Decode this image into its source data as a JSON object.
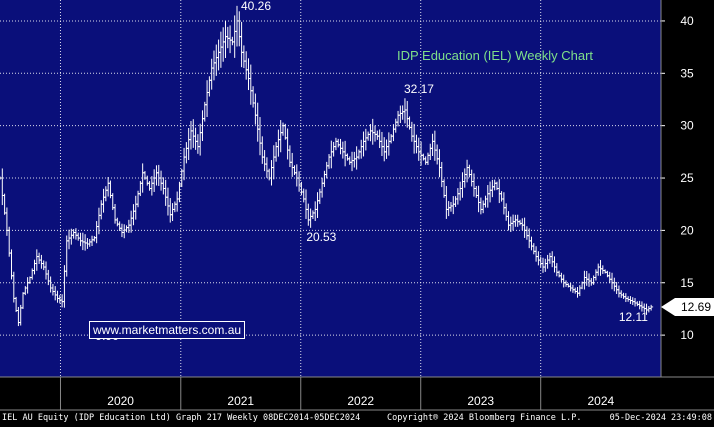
{
  "chart_data": {
    "type": "ohlc",
    "title": "IDP Education (IEL) Weekly Chart",
    "ylim": [
      6,
      42
    ],
    "yticks": [
      10,
      15,
      20,
      25,
      30,
      35,
      40
    ],
    "xlim": [
      "2019-07-01",
      "2025-01-01"
    ],
    "year_labels": [
      "2020",
      "2021",
      "2022",
      "2023",
      "2024"
    ],
    "last_price": "12.69",
    "annotations": [
      {
        "text": "40.26",
        "date": "2021-06-21",
        "value": 40.26
      },
      {
        "text": "32.17",
        "date": "2022-11-14",
        "value": 32.17
      },
      {
        "text": "20.53",
        "date": "2022-01-24",
        "value": 20.53
      },
      {
        "text": "9.90",
        "date": "2020-03-23",
        "value": 9.9
      },
      {
        "text": "12.11",
        "date": "2024-11-25",
        "value": 12.11
      }
    ],
    "series": [
      {
        "values": [
          [
            "2019-07-01",
            25.0
          ],
          [
            "2019-07-22",
            20.0
          ],
          [
            "2019-08-12",
            13.5
          ],
          [
            "2019-08-26",
            11.2
          ],
          [
            "2019-09-09",
            14.0
          ],
          [
            "2019-09-30",
            15.5
          ],
          [
            "2019-10-21",
            17.5
          ],
          [
            "2019-11-11",
            16.5
          ],
          [
            "2019-12-02",
            14.5
          ],
          [
            "2019-12-23",
            13.5
          ],
          [
            "2020-01-06",
            13.2
          ],
          [
            "2020-01-20",
            19.0
          ],
          [
            "2020-02-10",
            19.8
          ],
          [
            "2020-03-02",
            19.0
          ],
          [
            "2020-03-23",
            18.7
          ],
          [
            "2020-04-13",
            19.3
          ],
          [
            "2020-05-04",
            22.5
          ],
          [
            "2020-05-25",
            24.5
          ],
          [
            "2020-06-15",
            21.0
          ],
          [
            "2020-07-06",
            19.8
          ],
          [
            "2020-07-27",
            20.5
          ],
          [
            "2020-08-17",
            22.5
          ],
          [
            "2020-09-07",
            25.5
          ],
          [
            "2020-09-28",
            24.0
          ],
          [
            "2020-10-19",
            25.5
          ],
          [
            "2020-11-09",
            24.0
          ],
          [
            "2020-11-30",
            21.5
          ],
          [
            "2020-12-21",
            23.0
          ],
          [
            "2021-01-11",
            27.0
          ],
          [
            "2021-02-01",
            29.5
          ],
          [
            "2021-02-22",
            28.0
          ],
          [
            "2021-03-15",
            32.0
          ],
          [
            "2021-04-05",
            35.5
          ],
          [
            "2021-04-26",
            37.0
          ],
          [
            "2021-05-17",
            38.5
          ],
          [
            "2021-06-07",
            38.0
          ],
          [
            "2021-06-21",
            40.0
          ],
          [
            "2021-07-05",
            37.0
          ],
          [
            "2021-07-26",
            34.5
          ],
          [
            "2021-08-16",
            31.0
          ],
          [
            "2021-09-06",
            27.0
          ],
          [
            "2021-09-27",
            25.0
          ],
          [
            "2021-10-18",
            28.0
          ],
          [
            "2021-11-08",
            30.0
          ],
          [
            "2021-11-29",
            26.5
          ],
          [
            "2021-12-20",
            25.0
          ],
          [
            "2022-01-10",
            23.0
          ],
          [
            "2022-01-24",
            21.0
          ],
          [
            "2022-02-14",
            22.0
          ],
          [
            "2022-03-07",
            24.5
          ],
          [
            "2022-03-28",
            27.0
          ],
          [
            "2022-04-18",
            28.5
          ],
          [
            "2022-05-09",
            27.5
          ],
          [
            "2022-05-30",
            26.5
          ],
          [
            "2022-06-20",
            27.0
          ],
          [
            "2022-07-11",
            28.5
          ],
          [
            "2022-08-01",
            29.5
          ],
          [
            "2022-08-22",
            29.0
          ],
          [
            "2022-09-12",
            27.5
          ],
          [
            "2022-10-03",
            29.0
          ],
          [
            "2022-10-24",
            31.0
          ],
          [
            "2022-11-14",
            31.5
          ],
          [
            "2022-12-05",
            29.0
          ],
          [
            "2022-12-26",
            27.5
          ],
          [
            "2023-01-16",
            26.5
          ],
          [
            "2023-02-06",
            28.5
          ],
          [
            "2023-02-27",
            26.0
          ],
          [
            "2023-03-20",
            22.0
          ],
          [
            "2023-04-10",
            22.5
          ],
          [
            "2023-05-01",
            24.0
          ],
          [
            "2023-05-22",
            26.0
          ],
          [
            "2023-06-12",
            24.0
          ],
          [
            "2023-07-03",
            22.0
          ],
          [
            "2023-07-24",
            23.5
          ],
          [
            "2023-08-14",
            24.5
          ],
          [
            "2023-09-04",
            23.0
          ],
          [
            "2023-09-25",
            20.5
          ],
          [
            "2023-10-16",
            21.0
          ],
          [
            "2023-11-06",
            20.5
          ],
          [
            "2023-11-27",
            19.0
          ],
          [
            "2023-12-18",
            17.5
          ],
          [
            "2024-01-08",
            16.5
          ],
          [
            "2024-01-29",
            17.5
          ],
          [
            "2024-02-19",
            16.0
          ],
          [
            "2024-03-11",
            15.0
          ],
          [
            "2024-04-01",
            14.5
          ],
          [
            "2024-04-22",
            14.0
          ],
          [
            "2024-05-13",
            15.5
          ],
          [
            "2024-06-03",
            15.0
          ],
          [
            "2024-06-24",
            16.5
          ],
          [
            "2024-07-15",
            16.0
          ],
          [
            "2024-08-05",
            15.0
          ],
          [
            "2024-08-26",
            14.0
          ],
          [
            "2024-09-16",
            13.5
          ],
          [
            "2024-10-07",
            13.2
          ],
          [
            "2024-10-28",
            12.8
          ],
          [
            "2024-11-18",
            12.4
          ],
          [
            "2024-12-02",
            12.69
          ]
        ]
      }
    ]
  },
  "watermark": "www.marketmatters.com.au",
  "footer": {
    "left": "IEL AU Equity (IDP Education Ltd) Graph 217  Weekly 08DEC2014-05DEC2024",
    "center": "Copyright® 2024 Bloomberg Finance L.P.",
    "right": "05-Dec-2024 23:49:08"
  },
  "colors": {
    "plot_background": "#0a0f7a",
    "grid": "#ffffff",
    "bars": "#ffffff",
    "title": "#7fe08a",
    "price_badge": "#ffffff"
  }
}
